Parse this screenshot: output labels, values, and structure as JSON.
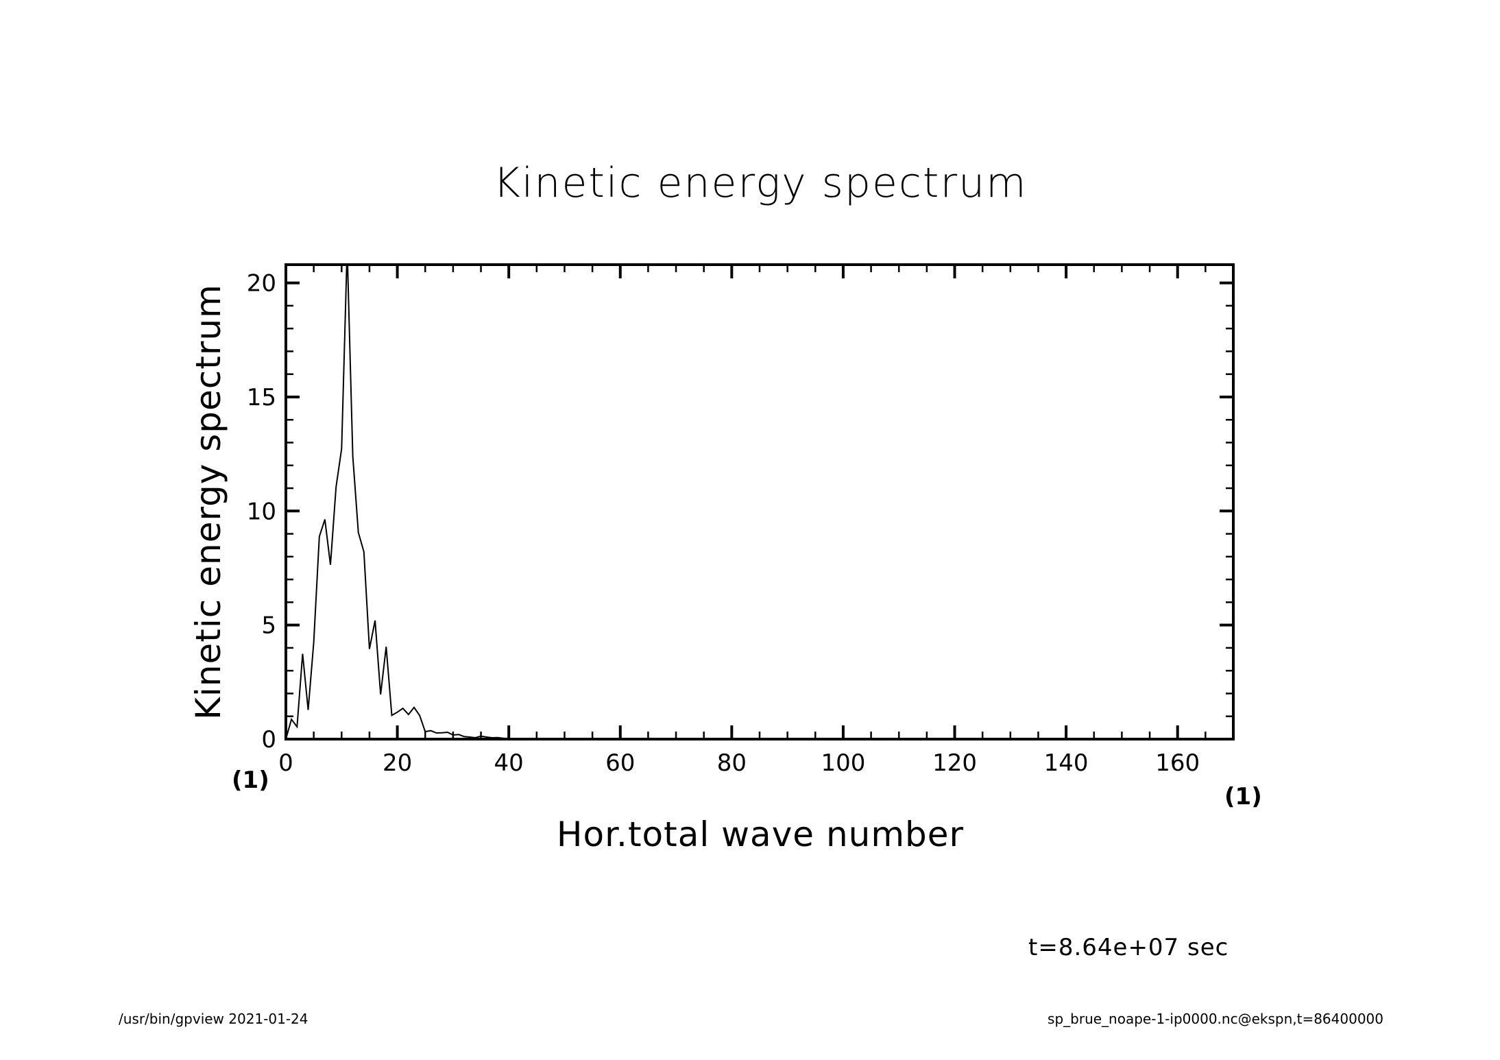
{
  "chart_data": {
    "type": "line",
    "title": "Kinetic energy spectrum",
    "xlabel": "Hor.total wave number",
    "ylabel": "Kinetic energy spectrum",
    "x_unit": "(1)",
    "y_unit": "(1)",
    "xlim": [
      0,
      170
    ],
    "ylim": [
      0,
      20.8
    ],
    "x_ticks": [
      0,
      20,
      40,
      60,
      80,
      100,
      120,
      140,
      160
    ],
    "y_ticks": [
      0,
      5,
      10,
      15,
      20
    ],
    "grid": false,
    "x_start": 0,
    "x_step": 1,
    "values": [
      0.0,
      0.87,
      0.54,
      3.74,
      1.28,
      4.23,
      8.88,
      9.63,
      7.64,
      11.05,
      12.73,
      21.5,
      12.4,
      9.06,
      8.21,
      3.95,
      5.2,
      1.96,
      4.05,
      1.04,
      1.18,
      1.35,
      1.08,
      1.39,
      1.04,
      0.33,
      0.37,
      0.27,
      0.28,
      0.3,
      0.18,
      0.2,
      0.11,
      0.09,
      0.06,
      0.13,
      0.09,
      0.06,
      0.07,
      0.04,
      0.03,
      0.03,
      0.02,
      0.02,
      0.02,
      0.01,
      0.01,
      0.01,
      0.01,
      0.01,
      0.0,
      0.0,
      0.0,
      0.0,
      0.0,
      0.0,
      0.0,
      0.0,
      0.0,
      0.0,
      0.0,
      0.0,
      0.0,
      0.0,
      0.0,
      0.0,
      0.0,
      0.0,
      0.0,
      0.0,
      0.0,
      0.0,
      0.0,
      0.0,
      0.0,
      0.0,
      0.0,
      0.0,
      0.0,
      0.0,
      0.0,
      0.0,
      0.0,
      0.0,
      0.0,
      0.0,
      0.0,
      0.0,
      0.0,
      0.0,
      0.0,
      0.0,
      0.0,
      0.0,
      0.0,
      0.0,
      0.0,
      0.0,
      0.0,
      0.0,
      0.0,
      0.0,
      0.0,
      0.0,
      0.0,
      0.0,
      0.0,
      0.0,
      0.0,
      0.0,
      0.0,
      0.0,
      0.0,
      0.0,
      0.0,
      0.0,
      0.0,
      0.0,
      0.0,
      0.0,
      0.0,
      0.0,
      0.0,
      0.0,
      0.0,
      0.0,
      0.0,
      0.0,
      0.0,
      0.0,
      0.0,
      0.0,
      0.0,
      0.0,
      0.0,
      0.0,
      0.0,
      0.0,
      0.0,
      0.0,
      0.0,
      0.0,
      0.0,
      0.0,
      0.0,
      0.0,
      0.0,
      0.0,
      0.0,
      0.0,
      0.0,
      0.0,
      0.0,
      0.0,
      0.0,
      0.0,
      0.0,
      0.0,
      0.0,
      0.0,
      0.0,
      0.0,
      0.0,
      0.0,
      0.0,
      0.0,
      0.0,
      0.0,
      0.0,
      0.0,
      0.0
    ],
    "annotation": "t=8.64e+07 sec"
  },
  "footer": {
    "left": "/usr/bin/gpview  2021-01-24",
    "right": "sp_brue_noape-1-ip0000.nc@ekspn,t=86400000"
  }
}
